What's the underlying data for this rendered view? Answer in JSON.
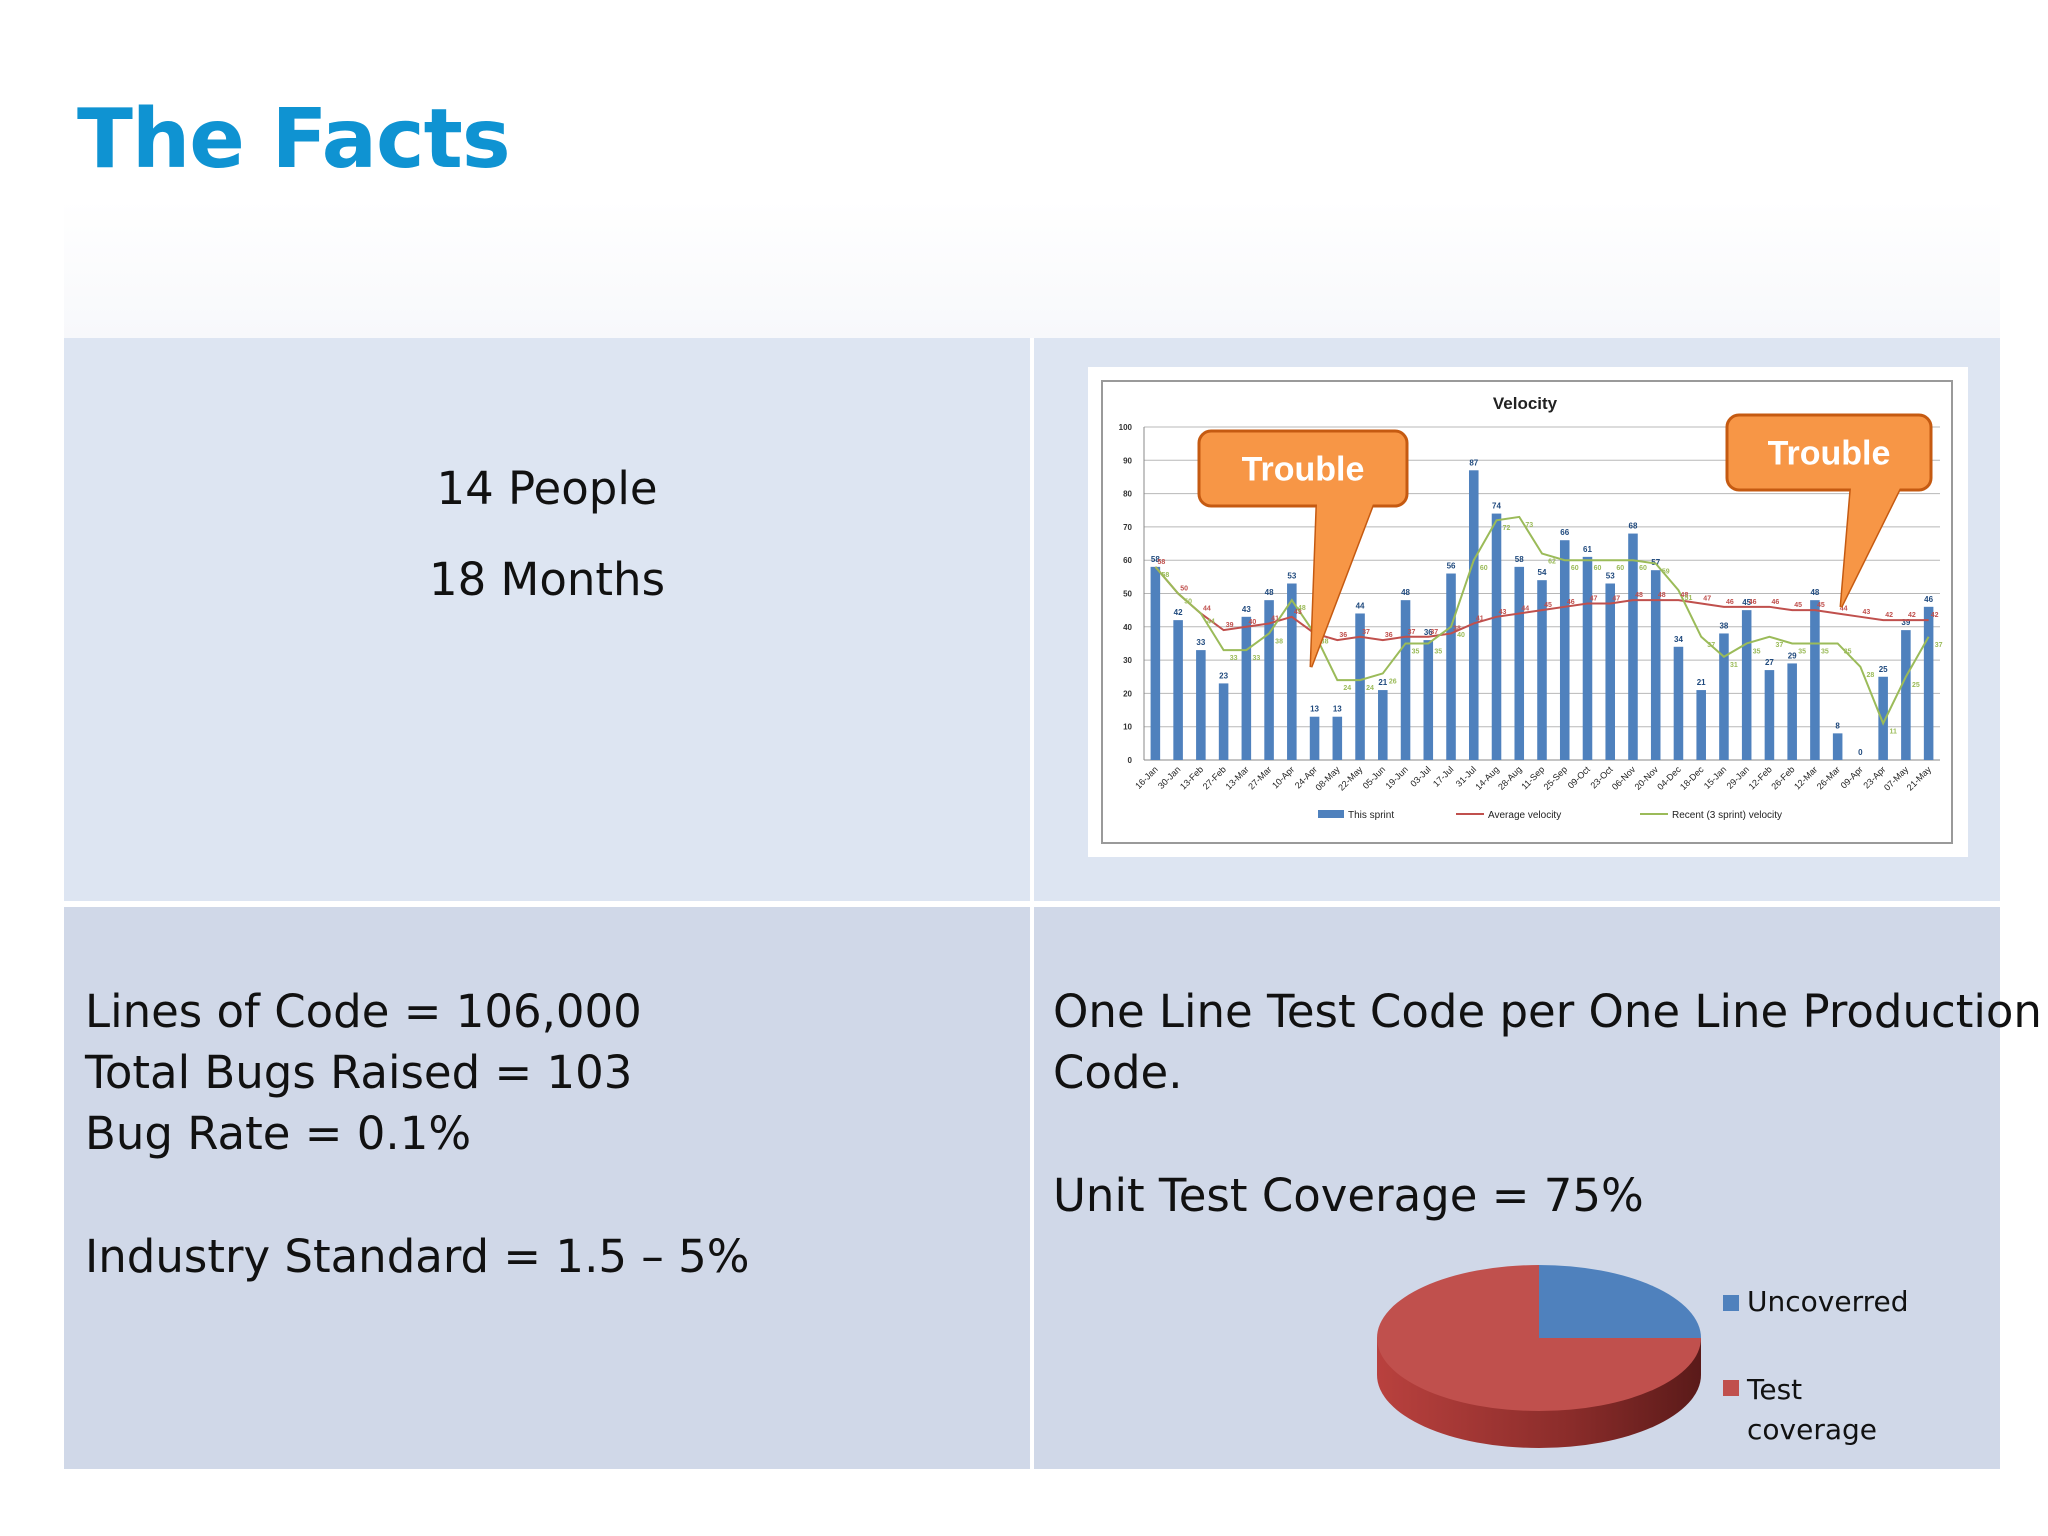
{
  "slide": {
    "title": "The Facts"
  },
  "team": {
    "people": "14 People",
    "duration": "18 Months"
  },
  "stats": {
    "lines": [
      "Lines of Code = 106,000",
      "Total Bugs Raised = 103",
      "Bug Rate = 0.1%",
      "Industry Standard = 1.5 – 5%"
    ]
  },
  "testing": {
    "line1": "One Line Test Code per One Line Production",
    "line2": "Code.",
    "coverage": "Unit Test Coverage = 75%"
  },
  "callouts": [
    "Trouble",
    "Trouble"
  ],
  "colors": {
    "title": "#0f93d2",
    "bars": "#4f81bd",
    "average": "#c0504d",
    "recent": "#9bbb59",
    "callout": "#f79646",
    "pie_uncovered": "#4f81bd",
    "pie_test": "#c0504d"
  },
  "chart_data": [
    {
      "type": "bar",
      "title": "Velocity",
      "ylim": [
        0,
        100
      ],
      "yticks": [
        0,
        10,
        20,
        30,
        40,
        50,
        60,
        70,
        80,
        90,
        100
      ],
      "grid": true,
      "legend_position": "bottom",
      "categories": [
        "16-Jan",
        "30-Jan",
        "13-Feb",
        "27-Feb",
        "13-Mar",
        "27-Mar",
        "10-Apr",
        "24-Apr",
        "08-May",
        "22-May",
        "05-Jun",
        "19-Jun",
        "03-Jul",
        "17-Jul",
        "31-Jul",
        "14-Aug",
        "28-Aug",
        "11-Sep",
        "25-Sep",
        "09-Oct",
        "23-Oct",
        "06-Nov",
        "20-Nov",
        "04-Dec",
        "18-Dec",
        "15-Jan",
        "29-Jan",
        "12-Feb",
        "26-Feb",
        "12-Mar",
        "26-Mar",
        "09-Apr",
        "23-Apr",
        "07-May",
        "21-May"
      ],
      "series": [
        {
          "name": "This sprint",
          "kind": "bar",
          "values": [
            58,
            42,
            33,
            23,
            43,
            48,
            53,
            13,
            13,
            44,
            21,
            48,
            36,
            56,
            87,
            74,
            58,
            54,
            66,
            61,
            53,
            68,
            57,
            34,
            21,
            38,
            45,
            27,
            29,
            48,
            8,
            0,
            25,
            39,
            46
          ]
        },
        {
          "name": "Average velocity",
          "kind": "line",
          "values": [
            58,
            50,
            44,
            39,
            40,
            41,
            43,
            38,
            36,
            37,
            36,
            37,
            37,
            38,
            41,
            43,
            44,
            45,
            46,
            47,
            47,
            48,
            48,
            48,
            47,
            46,
            46,
            46,
            45,
            45,
            44,
            43,
            42,
            42,
            42
          ]
        },
        {
          "name": "Recent (3 sprint) velocity",
          "kind": "line",
          "values": [
            58,
            50,
            44,
            33,
            33,
            38,
            48,
            38,
            24,
            24,
            26,
            35,
            35,
            40,
            60,
            72,
            73,
            62,
            60,
            60,
            60,
            60,
            59,
            51,
            37,
            31,
            35,
            37,
            35,
            35,
            35,
            28,
            11,
            25,
            37
          ]
        }
      ]
    },
    {
      "type": "pie",
      "categories": [
        "Uncoverred",
        "Test coverage"
      ],
      "values": [
        25,
        75
      ]
    }
  ]
}
